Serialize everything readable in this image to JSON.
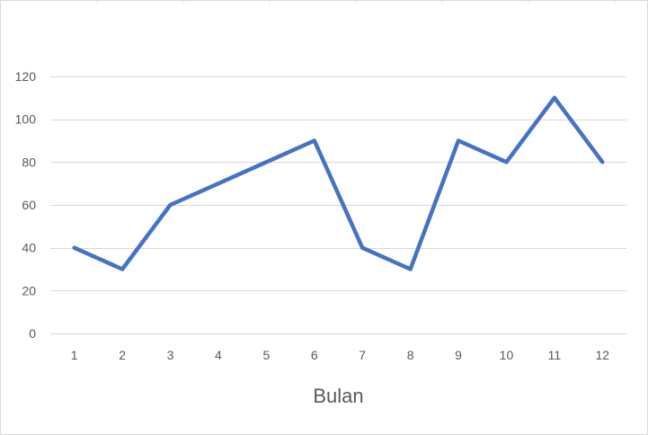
{
  "chart_data": {
    "type": "line",
    "title": "",
    "xlabel": "Bulan",
    "ylabel": "",
    "categories": [
      "1",
      "2",
      "3",
      "4",
      "5",
      "6",
      "7",
      "8",
      "9",
      "10",
      "11",
      "12"
    ],
    "series": [
      {
        "values": [
          40,
          30,
          60,
          70,
          80,
          90,
          40,
          30,
          90,
          80,
          110,
          80
        ]
      }
    ],
    "ylim": [
      0,
      120
    ],
    "yticks": [
      "0",
      "20",
      "40",
      "60",
      "80",
      "100",
      "120"
    ],
    "grid": true,
    "legend": "none",
    "colors": {
      "line": "#4472C4",
      "grid": "#D9D9D9",
      "text": "#595959",
      "border": "#D9D9D9"
    }
  }
}
